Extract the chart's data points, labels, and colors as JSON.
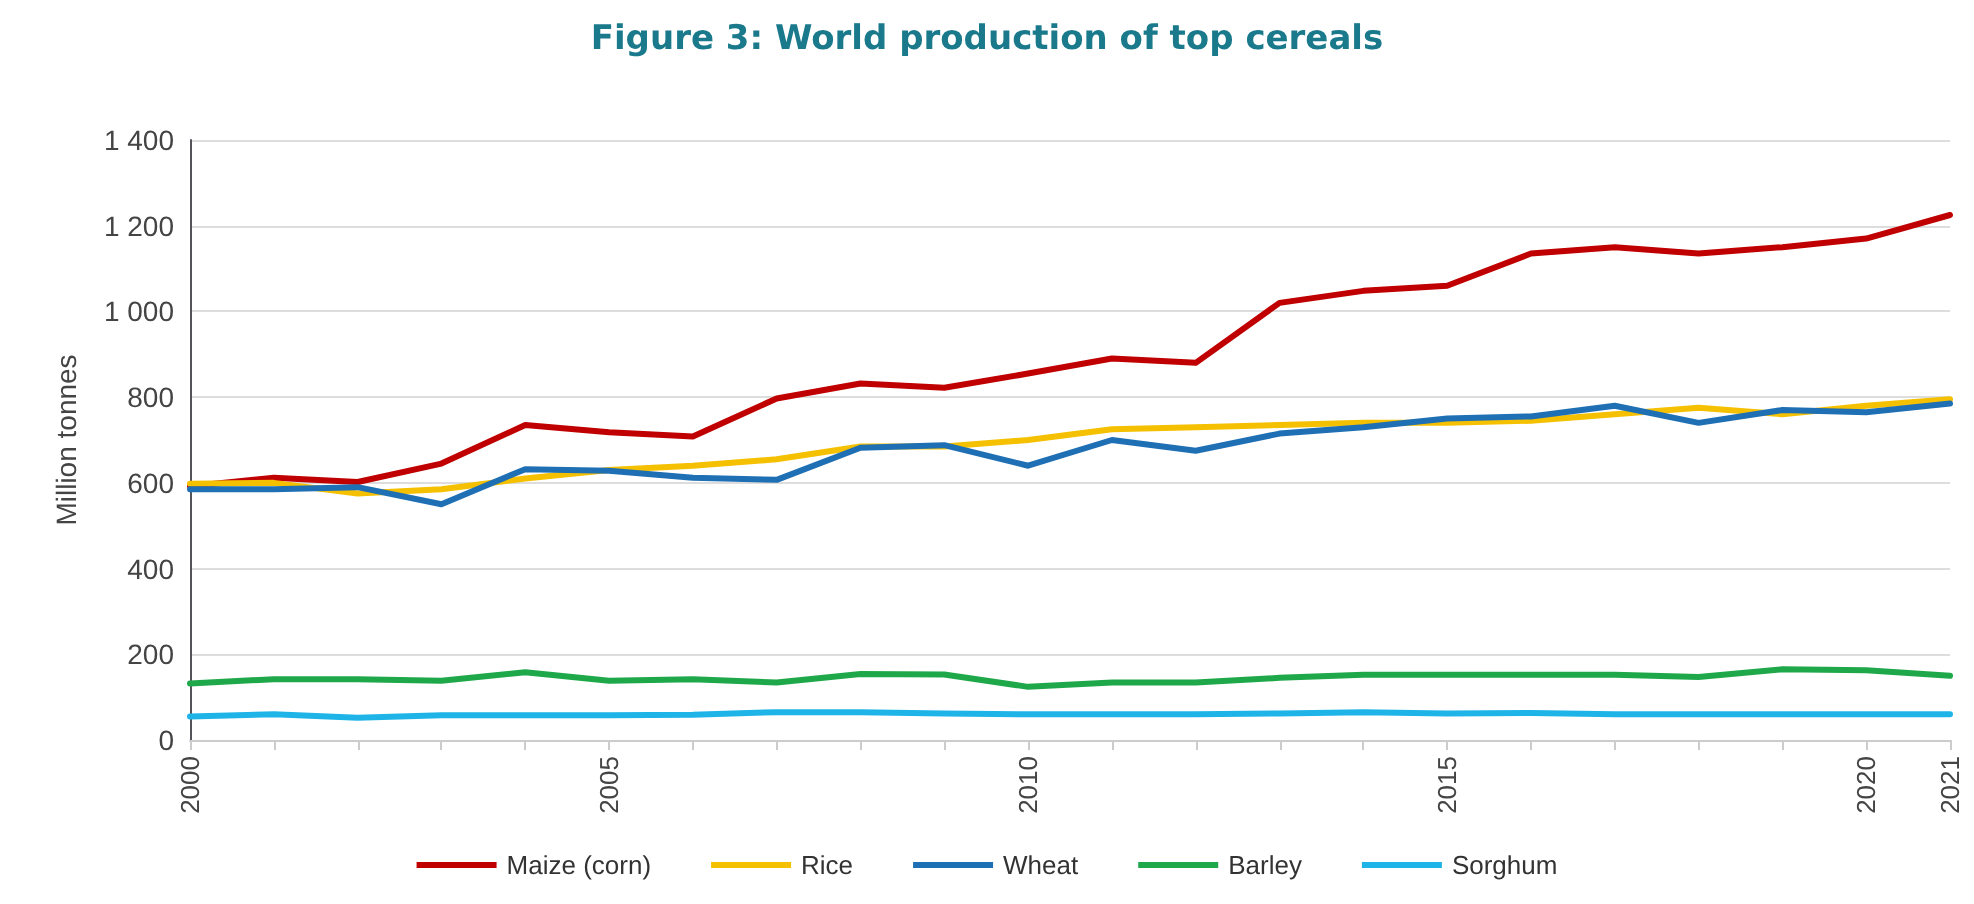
{
  "chart_data": {
    "type": "line",
    "title": "Figure 3: World production of top cereals",
    "ylabel": "Million tonnes",
    "x": [
      2000,
      2001,
      2002,
      2003,
      2004,
      2005,
      2006,
      2007,
      2008,
      2009,
      2010,
      2011,
      2012,
      2013,
      2014,
      2015,
      2016,
      2017,
      2018,
      2019,
      2020,
      2021
    ],
    "series": [
      {
        "name": "Maize (corn)",
        "color": "#c00000",
        "values": [
          592,
          612,
          602,
          645,
          735,
          718,
          708,
          797,
          832,
          822,
          855,
          890,
          880,
          1020,
          1048,
          1060,
          1135,
          1150,
          1135,
          1150,
          1170,
          1225
        ]
      },
      {
        "name": "Rice",
        "color": "#f5c000",
        "values": [
          598,
          600,
          575,
          585,
          610,
          630,
          640,
          655,
          685,
          685,
          700,
          725,
          730,
          735,
          740,
          740,
          745,
          760,
          775,
          760,
          780,
          795
        ]
      },
      {
        "name": "Wheat",
        "color": "#1f6fb4",
        "values": [
          585,
          585,
          590,
          550,
          632,
          628,
          612,
          607,
          682,
          688,
          640,
          700,
          675,
          715,
          730,
          750,
          755,
          780,
          740,
          770,
          765,
          785
        ]
      },
      {
        "name": "Barley",
        "color": "#1fa84a",
        "values": [
          132,
          142,
          142,
          138,
          158,
          138,
          142,
          134,
          154,
          153,
          124,
          134,
          134,
          145,
          152,
          152,
          152,
          152,
          147,
          165,
          163,
          150
        ]
      },
      {
        "name": "Sorghum",
        "color": "#1fb4e8",
        "values": [
          55,
          60,
          52,
          58,
          58,
          58,
          59,
          65,
          65,
          62,
          60,
          60,
          60,
          62,
          65,
          62,
          63,
          60,
          60,
          60,
          60,
          60
        ]
      }
    ],
    "xlim": [
      2000,
      2021
    ],
    "xticks": [
      2000,
      2005,
      2010,
      2015,
      2020,
      2021
    ],
    "ylim": [
      0,
      1400
    ],
    "yticks": [
      0,
      200,
      400,
      600,
      800,
      {
        "value": 1000,
        "label": "1 000"
      },
      {
        "value": 1200,
        "label": "1 200"
      },
      {
        "value": 1400,
        "label": "1 400"
      }
    ],
    "grid": "y",
    "legend": "bottom",
    "marker": "none",
    "line_style": "solid"
  }
}
